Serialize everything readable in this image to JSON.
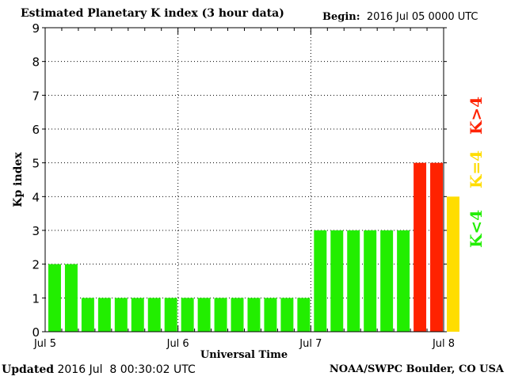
{
  "header": {
    "title": "Estimated Planetary K index (3 hour data)",
    "begin_label": "Begin:",
    "begin_value": "2016 Jul 05 0000 UTC"
  },
  "footer": {
    "updated_label": "Updated",
    "updated_value": "2016 Jul  8 00:30:02 UTC",
    "credit": "NOAA/SWPC Boulder, CO USA"
  },
  "chart_data": {
    "type": "bar",
    "title": "Estimated Planetary K index (3 hour data)",
    "xlabel": "Universal Time",
    "ylabel": "Kp index",
    "ylim": [
      0,
      9
    ],
    "yticks": [
      0,
      1,
      2,
      3,
      4,
      5,
      6,
      7,
      8,
      9
    ],
    "xticks": [
      "Jul 5",
      "Jul 6",
      "Jul 7",
      "Jul 8"
    ],
    "bars_per_day": 8,
    "values": [
      2,
      2,
      1,
      1,
      1,
      1,
      1,
      1,
      1,
      1,
      1,
      1,
      1,
      1,
      1,
      1,
      3,
      3,
      3,
      3,
      3,
      3,
      5,
      5,
      4
    ],
    "grid": true,
    "colors": {
      "low": "#22ee00",
      "equal": "#ffdd00",
      "high": "#ff2200",
      "grid": "#000000"
    },
    "legend": [
      {
        "label": "K>4",
        "color": "#ff2200"
      },
      {
        "label": "K=4",
        "color": "#ffdd00"
      },
      {
        "label": "K<4",
        "color": "#22ee00"
      }
    ]
  }
}
